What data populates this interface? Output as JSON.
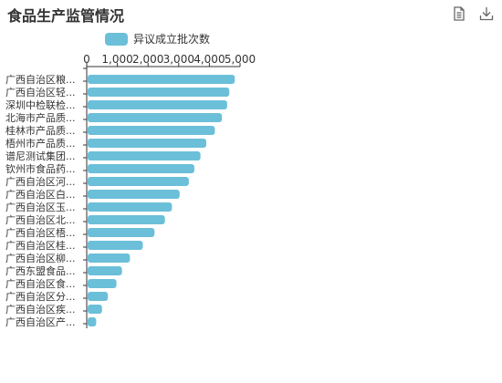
{
  "colors": {
    "bar": "#6bbfd9",
    "axis": "#333333",
    "text": "#333333",
    "toolbar_icon": "#666666"
  },
  "toolbar": {
    "icons": [
      "data-view-icon",
      "download-icon"
    ]
  },
  "chart_data": {
    "type": "bar",
    "orientation": "horizontal",
    "title": "食品生产监管情况",
    "legend": {
      "entries": [
        "异议成立批次数"
      ],
      "position": "top"
    },
    "xlim": [
      0,
      5000
    ],
    "x_ticks": [
      "0",
      "1,000",
      "2,000",
      "3,000",
      "4,000",
      "5,000"
    ],
    "grid": false,
    "categories": [
      "广西自治区粮...",
      "广西自治区轻...",
      "深圳中检联检...",
      "北海市产品质...",
      "桂林市产品质...",
      "梧州市产品质...",
      "谱尼测试集团...",
      "钦州市食品药...",
      "广西自治区河...",
      "广西自治区白...",
      "广西自治区玉...",
      "广西自治区北...",
      "广西自治区梧...",
      "广西自治区桂...",
      "广西自治区柳...",
      "广西东盟食品...",
      "广西自治区食...",
      "广西自治区分...",
      "广西自治区疾...",
      "广西自治区产..."
    ],
    "series": [
      {
        "name": "异议成立批次数",
        "values": [
          4800,
          4620,
          4550,
          4380,
          4150,
          3870,
          3680,
          3480,
          3300,
          3000,
          2750,
          2520,
          2180,
          1800,
          1380,
          1120,
          940,
          660,
          470,
          280
        ]
      }
    ]
  }
}
